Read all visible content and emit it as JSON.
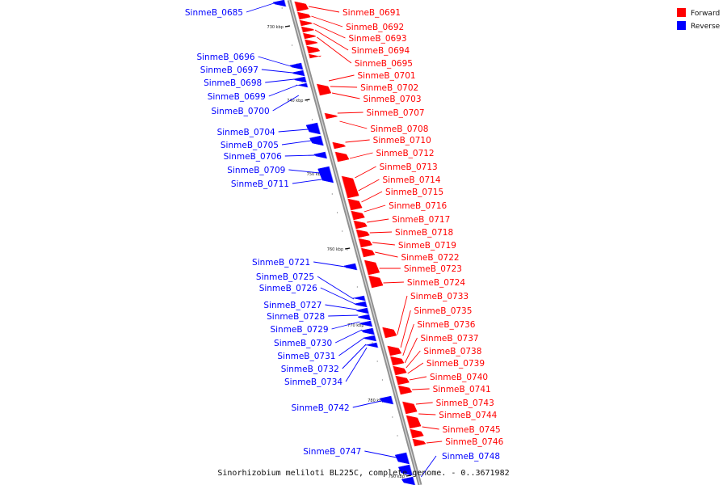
{
  "caption": "Sinorhizobium meliloti BL225C, complete genome. - 0..3671982",
  "legend": [
    {
      "label": "Forward",
      "color": "#ff0000"
    },
    {
      "label": "Reverse",
      "color": "#0000ff"
    }
  ],
  "colors": {
    "forward": "#ff0000",
    "reverse": "#0000ff",
    "backbone": "#909090"
  },
  "ticks": [
    "730 kbp",
    "740 kbp",
    "750 kbp",
    "760 kbp",
    "770 kbp",
    "780 kbp",
    "790 kbp"
  ],
  "genes_forward": [
    "SinmeB_0691",
    "SinmeB_0692",
    "SinmeB_0693",
    "SinmeB_0694",
    "SinmeB_0695",
    "SinmeB_0701",
    "SinmeB_0702",
    "SinmeB_0703",
    "SinmeB_0707",
    "SinmeB_0708",
    "SinmeB_0710",
    "SinmeB_0712",
    "SinmeB_0713",
    "SinmeB_0714",
    "SinmeB_0715",
    "SinmeB_0716",
    "SinmeB_0717",
    "SinmeB_0718",
    "SinmeB_0719",
    "SinmeB_0722",
    "SinmeB_0723",
    "SinmeB_0724",
    "SinmeB_0733",
    "SinmeB_0735",
    "SinmeB_0736",
    "SinmeB_0737",
    "SinmeB_0738",
    "SinmeB_0739",
    "SinmeB_0740",
    "SinmeB_0741",
    "SinmeB_0743",
    "SinmeB_0744",
    "SinmeB_0745",
    "SinmeB_0746"
  ],
  "genes_reverse": [
    "SinmeB_0685",
    "SinmeB_0696",
    "SinmeB_0697",
    "SinmeB_0698",
    "SinmeB_0699",
    "SinmeB_0700",
    "SinmeB_0704",
    "SinmeB_0705",
    "SinmeB_0706",
    "SinmeB_0709",
    "SinmeB_0711",
    "SinmeB_0721",
    "SinmeB_0725",
    "SinmeB_0726",
    "SinmeB_0727",
    "SinmeB_0728",
    "SinmeB_0729",
    "SinmeB_0730",
    "SinmeB_0731",
    "SinmeB_0732",
    "SinmeB_0734",
    "SinmeB_0742",
    "SinmeB_0747",
    "SinmeB_0748"
  ]
}
